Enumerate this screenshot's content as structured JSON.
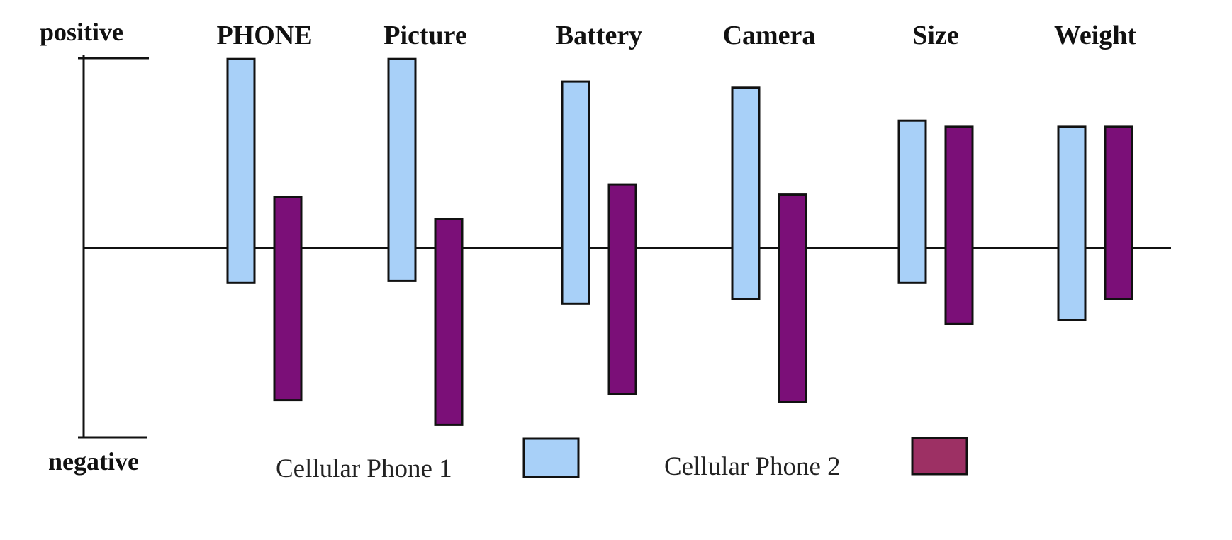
{
  "chart_data": {
    "type": "bar",
    "axis_labels": {
      "top": "positive",
      "bottom": "negative"
    },
    "ylim": [
      -1,
      1
    ],
    "categories": [
      "PHONE",
      "Picture",
      "Battery",
      "Camera",
      "Size",
      "Weight"
    ],
    "series": [
      {
        "name": "Cellular Phone 1",
        "color": "#a8d0f8",
        "ranges": [
          [
            -0.17,
            0.92
          ],
          [
            -0.16,
            0.92
          ],
          [
            -0.27,
            0.81
          ],
          [
            -0.25,
            0.78
          ],
          [
            -0.17,
            0.62
          ],
          [
            -0.35,
            0.59
          ]
        ]
      },
      {
        "name": "Cellular Phone 2",
        "color": "#7b0f78",
        "legend_color": "#9d3064",
        "ranges": [
          [
            -0.74,
            0.25
          ],
          [
            -0.86,
            0.14
          ],
          [
            -0.71,
            0.31
          ],
          [
            -0.75,
            0.26
          ],
          [
            -0.37,
            0.59
          ],
          [
            -0.25,
            0.59
          ]
        ]
      }
    ],
    "grid": false,
    "legend_position": "bottom"
  }
}
